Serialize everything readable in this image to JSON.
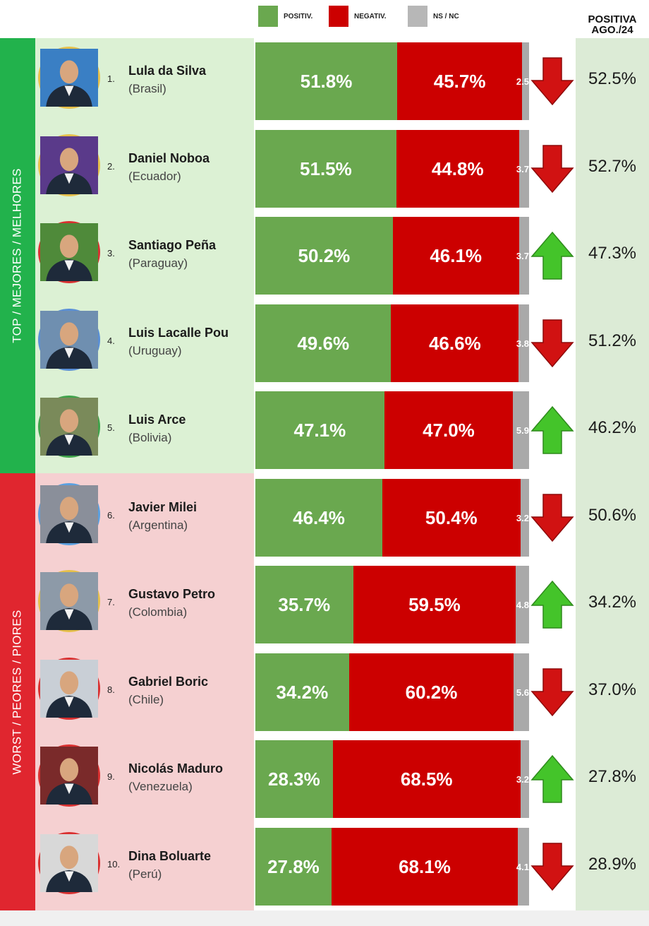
{
  "legend": [
    {
      "label": "POSITIV.",
      "color": "#6aa84f"
    },
    {
      "label": "NEGATIV.",
      "color": "#cc0000"
    },
    {
      "label": "NS / NC",
      "color": "#b7b7b7"
    }
  ],
  "prev_header": {
    "line1": "POSITIVA",
    "line2": "AGO./24"
  },
  "sections": [
    {
      "label": "TOP / MEJORES / MELHORES",
      "color": "#22b24c",
      "bg": "#dcf1d4"
    },
    {
      "label": "WORST / PEORES / PIORES",
      "color": "#e0262f",
      "bg": "#f5d0d1"
    }
  ],
  "chart_data": {
    "type": "bar",
    "stacked": true,
    "orientation": "horizontal",
    "categories": [
      "Lula da Silva",
      "Daniel Noboa",
      "Santiago Peña",
      "Luis Lacalle Pou",
      "Luis Arce",
      "Javier Milei",
      "Gustavo Petro",
      "Gabriel Boric",
      "Nicolás Maduro",
      "Dina Boluarte"
    ],
    "series": [
      {
        "name": "POSITIV.",
        "values": [
          51.8,
          51.5,
          50.2,
          49.6,
          47.1,
          46.4,
          35.7,
          34.2,
          28.3,
          27.8
        ]
      },
      {
        "name": "NEGATIV.",
        "values": [
          45.7,
          44.8,
          46.1,
          46.6,
          47.0,
          50.4,
          59.5,
          60.2,
          68.5,
          68.1
        ]
      },
      {
        "name": "NS / NC",
        "values": [
          2.5,
          3.7,
          3.7,
          3.8,
          5.9,
          3.2,
          4.8,
          5.6,
          3.2,
          4.1
        ]
      }
    ],
    "rows": [
      {
        "rank": "1.",
        "name": "Lula da Silva",
        "country": "(Brasil)",
        "pos": "51.8%",
        "neg": "45.7%",
        "ns": "2.5",
        "trend": "down",
        "prev": "52.5%",
        "section": 0,
        "ring": "#e6c04a",
        "bg": "#3a7fc4"
      },
      {
        "rank": "2.",
        "name": "Daniel Noboa",
        "country": "(Ecuador)",
        "pos": "51.5%",
        "neg": "44.8%",
        "ns": "3.7",
        "trend": "down",
        "prev": "52.7%",
        "section": 0,
        "ring": "#e6c04a",
        "bg": "#5a3a8a"
      },
      {
        "rank": "3.",
        "name": "Santiago Peña",
        "country": "(Paraguay)",
        "pos": "50.2%",
        "neg": "46.1%",
        "ns": "3.7",
        "trend": "up",
        "prev": "47.3%",
        "section": 0,
        "ring": "#d93030",
        "bg": "#4f8a3a"
      },
      {
        "rank": "4.",
        "name": "Luis Lacalle Pou",
        "country": "(Uruguay)",
        "pos": "49.6%",
        "neg": "46.6%",
        "ns": "3.8",
        "trend": "down",
        "prev": "51.2%",
        "section": 0,
        "ring": "#5a8fd6",
        "bg": "#6f8fb0"
      },
      {
        "rank": "5.",
        "name": "Luis Arce",
        "country": "(Bolivia)",
        "pos": "47.1%",
        "neg": "47.0%",
        "ns": "5.9",
        "trend": "up",
        "prev": "46.2%",
        "section": 0,
        "ring": "#3fa24a",
        "bg": "#7a8a5a"
      },
      {
        "rank": "6.",
        "name": "Javier Milei",
        "country": "(Argentina)",
        "pos": "46.4%",
        "neg": "50.4%",
        "ns": "3.2",
        "trend": "down",
        "prev": "50.6%",
        "section": 1,
        "ring": "#5aa0e0",
        "bg": "#8a8f9a"
      },
      {
        "rank": "7.",
        "name": "Gustavo Petro",
        "country": "(Colombia)",
        "pos": "35.7%",
        "neg": "59.5%",
        "ns": "4.8",
        "trend": "up",
        "prev": "34.2%",
        "section": 1,
        "ring": "#e6c04a",
        "bg": "#8d9aa8"
      },
      {
        "rank": "8.",
        "name": "Gabriel Boric",
        "country": "(Chile)",
        "pos": "34.2%",
        "neg": "60.2%",
        "ns": "5.6",
        "trend": "down",
        "prev": "37.0%",
        "section": 1,
        "ring": "#d93030",
        "bg": "#c9cfd6"
      },
      {
        "rank": "9.",
        "name": "Nicolás Maduro",
        "country": "(Venezuela)",
        "pos": "28.3%",
        "neg": "68.5%",
        "ns": "3.2",
        "trend": "up",
        "prev": "27.8%",
        "section": 1,
        "ring": "#d93030",
        "bg": "#7a2a2a"
      },
      {
        "rank": "10.",
        "name": "Dina Boluarte",
        "country": "(Perú)",
        "pos": "27.8%",
        "neg": "68.1%",
        "ns": "4.1",
        "trend": "down",
        "prev": "28.9%",
        "section": 1,
        "ring": "#d93030",
        "bg": "#d8d8d8"
      }
    ],
    "trend_colors": {
      "up": "#44c42a",
      "down": "#d11212"
    }
  }
}
